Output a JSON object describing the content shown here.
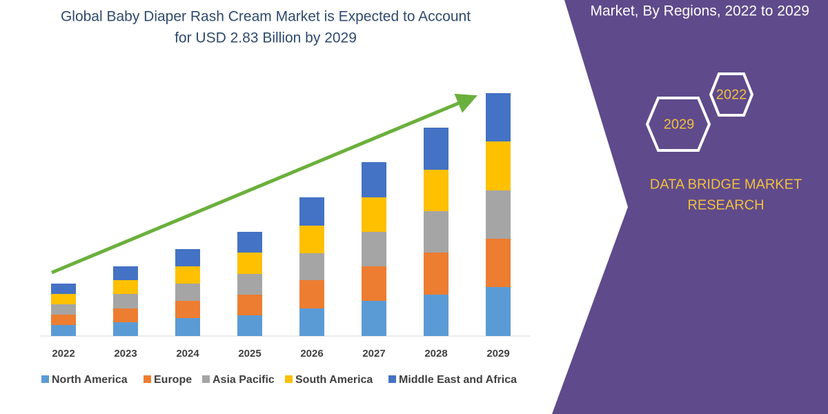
{
  "chart_data": {
    "type": "bar",
    "stacked": true,
    "title": [
      "Global Baby Diaper Rash Cream Market is Expected to Account",
      "for USD 2.83 Billion by 2029"
    ],
    "categories": [
      "2022",
      "2023",
      "2024",
      "2025",
      "2026",
      "2027",
      "2028",
      "2029"
    ],
    "series": [
      {
        "name": "North America",
        "color": "#5b9bd5",
        "values": [
          16,
          20,
          26,
          30,
          40,
          51,
          60,
          71
        ]
      },
      {
        "name": "Europe",
        "color": "#ed7d31",
        "values": [
          15,
          20,
          25,
          30,
          41,
          50,
          61,
          70
        ]
      },
      {
        "name": "Asia Pacific",
        "color": "#a5a5a5",
        "values": [
          15,
          21,
          25,
          30,
          39,
          50,
          60,
          70
        ]
      },
      {
        "name": "South America",
        "color": "#ffc000",
        "values": [
          15,
          20,
          25,
          31,
          40,
          50,
          60,
          71
        ]
      },
      {
        "name": "Middle East and Africa",
        "color": "#4472c4",
        "values": [
          15,
          20,
          25,
          30,
          41,
          51,
          61,
          70
        ]
      }
    ],
    "ylim": [
      0,
      352
    ]
  },
  "side_panel": {
    "header": "Market, By Regions, 2022 to 2029",
    "badges": [
      "2022",
      "2029"
    ],
    "brand": [
      "DATA BRIDGE MARKET",
      "RESEARCH"
    ]
  }
}
